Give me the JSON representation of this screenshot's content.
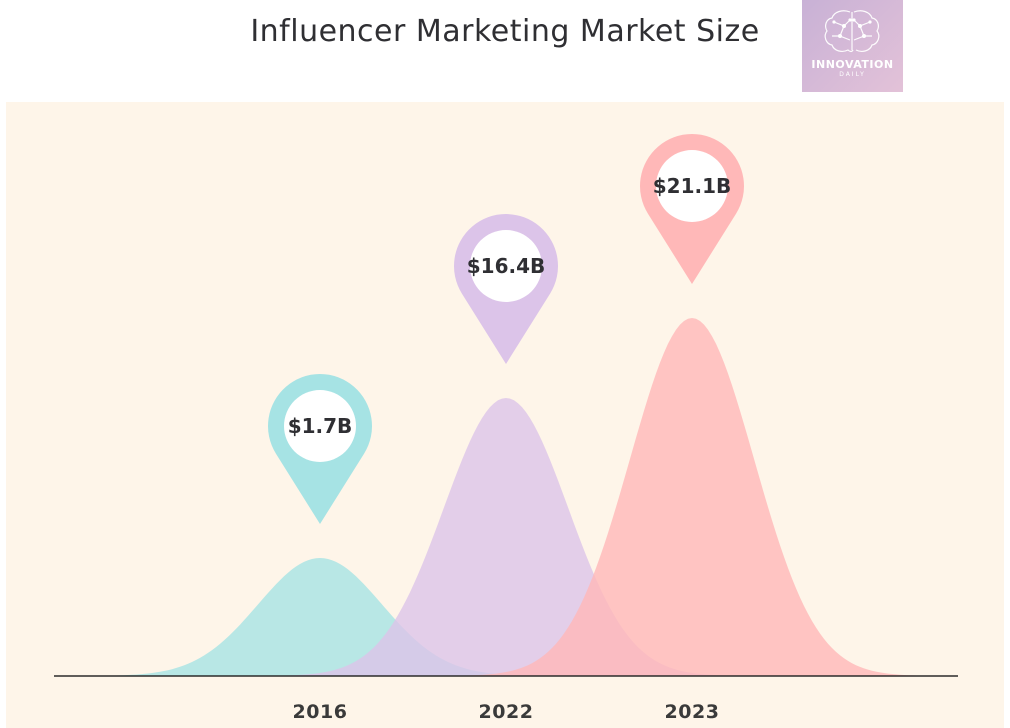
{
  "header": {
    "title": "Influencer Marketing Market Size",
    "logo_text": "INNOVATION",
    "logo_sub": "DAILY"
  },
  "chart_data": {
    "type": "area",
    "title": "Influencer Marketing Market Size",
    "categories": [
      "2016",
      "2022",
      "2023"
    ],
    "values": [
      1.7,
      16.4,
      21.1
    ],
    "labels": [
      "$1.7B",
      "$16.4B",
      "$21.1B"
    ],
    "unit": "$B",
    "colors": [
      "#a6e3e4",
      "#dcc4e9",
      "#ffb8b8"
    ],
    "grid": false,
    "legend": "none",
    "background": "#fef5e9"
  }
}
